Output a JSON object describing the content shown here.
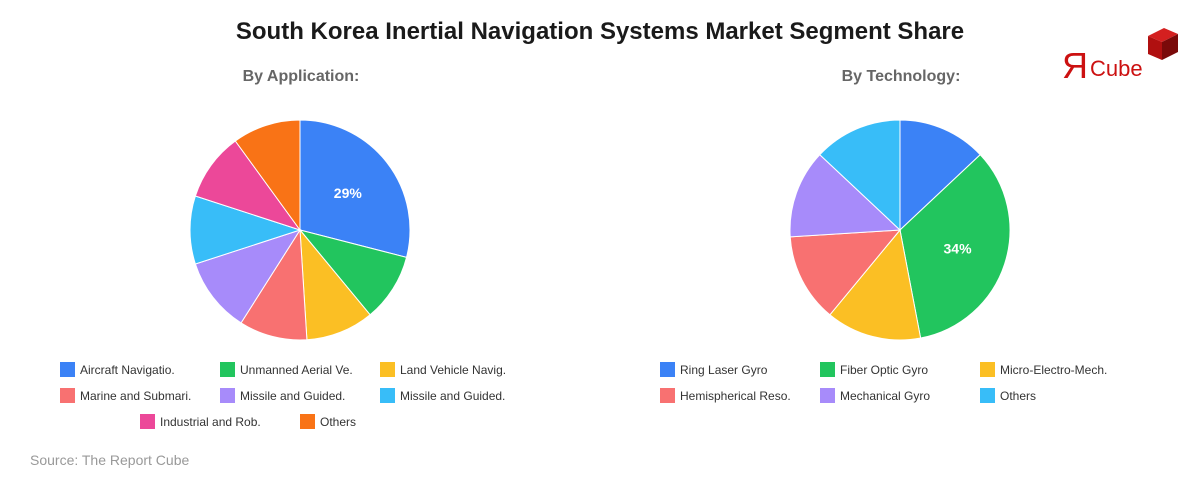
{
  "title": "South Korea Inertial Navigation Systems Market Segment Share",
  "source": "Source: The Report Cube",
  "logo": {
    "mirror_r": "Я",
    "text": "Cube",
    "color": "#cc1111"
  },
  "chart_data": [
    {
      "type": "pie",
      "title": "By Application:",
      "categories": [
        "Aircraft Navigatio.",
        "Unmanned Aerial Ve.",
        "Land Vehicle Navig.",
        "Marine and Submari.",
        "Missile and Guided.",
        "Missile and Guided.",
        "Industrial and Rob.",
        "Others"
      ],
      "values": [
        29,
        10,
        10,
        10,
        11,
        10,
        10,
        10
      ],
      "colors": [
        "#3b82f6",
        "#22c55e",
        "#fbbf24",
        "#f87171",
        "#a78bfa",
        "#38bdf8",
        "#ec4899",
        "#f97316"
      ],
      "data_labels": [
        {
          "index": 0,
          "text": "29%"
        }
      ],
      "legend_position": "bottom"
    },
    {
      "type": "pie",
      "title": "By Technology:",
      "categories": [
        "Ring Laser Gyro",
        "Fiber Optic Gyro",
        "Micro-Electro-Mech.",
        "Hemispherical Reso.",
        "Mechanical Gyro",
        "Others"
      ],
      "values": [
        13,
        34,
        14,
        13,
        13,
        13
      ],
      "colors": [
        "#3b82f6",
        "#22c55e",
        "#fbbf24",
        "#f87171",
        "#a78bfa",
        "#38bdf8"
      ],
      "data_labels": [
        {
          "index": 1,
          "text": "34%"
        }
      ],
      "legend_position": "bottom"
    }
  ]
}
